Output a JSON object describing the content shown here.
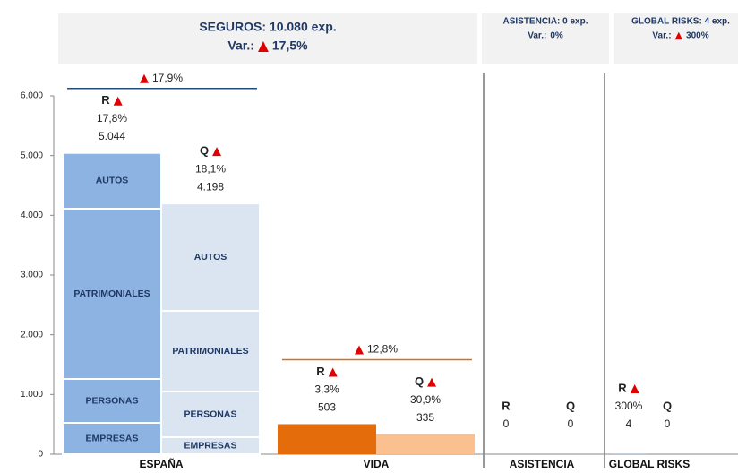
{
  "headers": [
    {
      "title": "SEGUROS: 10.080 exp.",
      "var_label": "Var.:",
      "var": "17,5%",
      "arrow": true
    },
    {
      "title": "ASISTENCIA: 0 exp.",
      "var_label": "Var.:",
      "var": "0%",
      "arrow": false
    },
    {
      "title": "GLOBAL RISKS: 4 exp.",
      "var_label": "Var.:",
      "var": "300%",
      "arrow": true
    }
  ],
  "chart_data": {
    "type": "stacked_bar",
    "ylim": [
      0,
      6000
    ],
    "yticks": [
      0,
      {
        "value": 1000,
        "label": "1.000"
      },
      {
        "value": 2000,
        "label": "2.000"
      },
      {
        "value": 3000,
        "label": "3.000"
      },
      {
        "value": 4000,
        "label": "4.000"
      },
      {
        "value": 5000,
        "label": "5.000"
      },
      {
        "value": 6000,
        "label": "6.000"
      }
    ],
    "groups": [
      {
        "name": "ESPAÑA",
        "annotation": {
          "change": "17,9%",
          "color": "#1f4e79"
        },
        "bars": [
          {
            "name": "R",
            "arrow": true,
            "change": "17,8%",
            "total": 5044,
            "total_label": "5.044",
            "color": "#8db3e2",
            "segment_names": [
              "EMPRESAS",
              "PERSONAS",
              "PATRIMONIALES",
              "AUTOS"
            ],
            "values": [
              525,
              735,
              2850,
              934
            ]
          },
          {
            "name": "Q",
            "arrow": true,
            "change": "18,1%",
            "total": 4198,
            "total_label": "4.198",
            "color": "#dbe5f1",
            "segment_names": [
              "EMPRESAS",
              "PERSONAS",
              "PATRIMONIALES",
              "AUTOS"
            ],
            "values": [
              285,
              765,
              1350,
              1798
            ]
          }
        ]
      },
      {
        "name": "VIDA",
        "annotation": {
          "change": "12,8%",
          "color": "#e46c0a"
        },
        "bars": [
          {
            "name": "R",
            "arrow": true,
            "change": "3,3%",
            "total": 503,
            "color": "#e46c0a",
            "values": [
              503
            ]
          },
          {
            "name": "Q",
            "arrow": true,
            "change": "30,9%",
            "total": 335,
            "color": "#fac090",
            "values": [
              335
            ]
          }
        ]
      },
      {
        "name": "ASISTENCIA",
        "bars": [
          {
            "name": "R",
            "arrow": false,
            "total": 0
          },
          {
            "name": "Q",
            "arrow": false,
            "total": 0
          }
        ]
      },
      {
        "name": "GLOBAL RISKS",
        "bars": [
          {
            "name": "R",
            "arrow": true,
            "change": "300%",
            "total": 4,
            "color": "#8db3e2",
            "values": [
              4
            ]
          },
          {
            "name": "Q",
            "arrow": false,
            "total": 0
          }
        ]
      }
    ]
  }
}
